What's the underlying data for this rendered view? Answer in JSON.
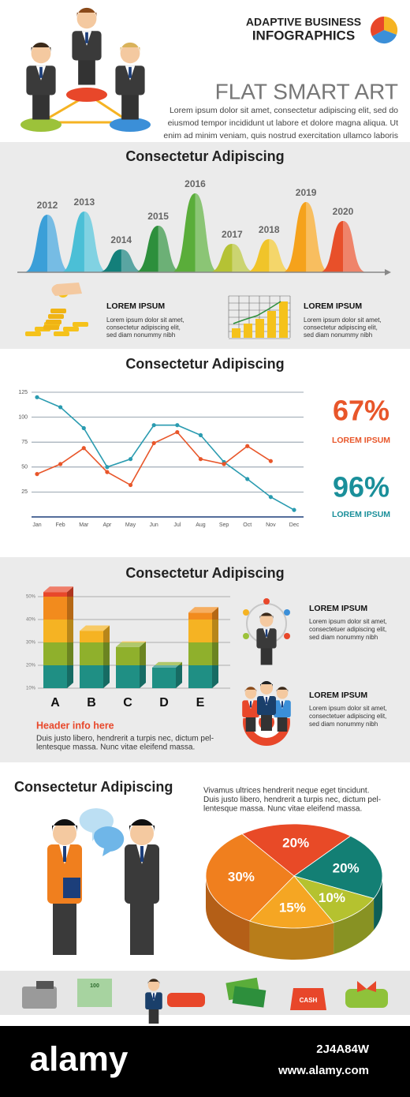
{
  "header": {
    "title_line1": "ADAPTIVE BUSINESS",
    "title_line2": "INFOGRAPHICS",
    "subtitle": "FLAT SMART ART",
    "text": [
      "Lorem ipsum dolor sit amet, consectetur adipiscing elit, sed do",
      "eiusmod tempor incididunt ut labore et dolore magna aliqua. Ut",
      "enim ad minim veniam, quis nostrud exercitation ullamco laboris"
    ]
  },
  "chart_data": [
    {
      "type": "bell",
      "title": "Consectetur Adipiscing",
      "categories": [
        "2012",
        "2013",
        "2014",
        "2015",
        "2016",
        "2017",
        "2018",
        "2019",
        "2020"
      ],
      "values": [
        73,
        77,
        29,
        59,
        100,
        36,
        42,
        89,
        65
      ],
      "colors": [
        "#3b9fd8",
        "#4bbfd6",
        "#137f7a",
        "#2d8f3c",
        "#5aad3a",
        "#b5c234",
        "#f0c42a",
        "#f5a21b",
        "#e8502a"
      ],
      "ylim": [
        0,
        100
      ]
    },
    {
      "type": "line",
      "title": "Consectetur Adipiscing",
      "categories": [
        "Jan",
        "Feb",
        "Mar",
        "Apr",
        "May",
        "Jun",
        "Jul",
        "Aug",
        "Sep",
        "Oct",
        "Nov",
        "Dec"
      ],
      "series": [
        {
          "color": "#2a9bb0",
          "values": [
            120,
            110,
            89,
            50,
            58,
            92,
            92,
            82,
            55,
            38,
            20,
            7
          ]
        },
        {
          "color": "#e8562a",
          "values": [
            43,
            53,
            69,
            45,
            32,
            74,
            85,
            58,
            53,
            71,
            56,
            null
          ]
        }
      ],
      "ylim": [
        0,
        125
      ],
      "yticks": [
        25,
        50,
        75,
        100,
        125
      ],
      "grid": true
    },
    {
      "type": "bar3d",
      "title": "Consectetur Adipiscing",
      "categories": [
        "A",
        "B",
        "C",
        "D",
        "E"
      ],
      "values": [
        52,
        35,
        28,
        19,
        43
      ],
      "colors": [
        "#1f8f84",
        "#8fb02c",
        "#f5b323",
        "#f28b1d",
        "#e8472a"
      ],
      "ylim": [
        10,
        50
      ],
      "yticks": [
        {
          "value": 10,
          "label": "10%"
        },
        {
          "value": 20,
          "label": "20%"
        },
        {
          "value": 30,
          "label": "30%"
        },
        {
          "value": 40,
          "label": "40%"
        },
        {
          "value": 50,
          "label": "50%"
        }
      ],
      "grid": true
    },
    {
      "type": "pie3d",
      "title": "Consectetur Adipiscing",
      "values": [
        20,
        20,
        10,
        15,
        30
      ],
      "value_labels": [
        "20%",
        "20%",
        "10%",
        "15%",
        "30%"
      ],
      "colors": [
        "#e84a27",
        "#137f74",
        "#b5c22f",
        "#f5a623",
        "#f07f1e"
      ]
    }
  ],
  "section1": {
    "blocks": [
      {
        "heading": "LOREM IPSUM",
        "lines": [
          "Lorem ipsum dolor sit amet,",
          "consectetur adipiscing elit,",
          "sed diam nonummy nibh"
        ]
      },
      {
        "heading": "LOREM IPSUM",
        "lines": [
          "Lorem ipsum dolor sit amet,",
          "consectetur adipiscing elit,",
          "sed diam nonummy nibh"
        ]
      }
    ]
  },
  "section2": {
    "stats": [
      {
        "value": "67%",
        "label": "LOREM IPSUM"
      },
      {
        "value": "96%",
        "label": "LOREM IPSUM"
      }
    ]
  },
  "section3": {
    "blocks": [
      {
        "heading": "LOREM IPSUM",
        "lines": [
          "Lorem ipsum dolor sit amet,",
          "consectetuer adipiscing elit,",
          "sed diam nonummy nibh"
        ]
      },
      {
        "heading": "LOREM IPSUM",
        "lines": [
          "Lorem ipsum dolor sit amet,",
          "consectetuer adipiscing elit,",
          "sed diam nonummy nibh"
        ]
      }
    ],
    "header": "Header info here",
    "lines": [
      "Duis justo libero, hendrerit a turpis nec, dictum pel-",
      "lentesque massa. Nunc vitae eleifend massa."
    ]
  },
  "section4": {
    "lines": [
      "Vivamus ultrices hendrerit neque eget tincidunt.",
      "Duis justo libero, hendrerit a turpis nec, dictum pel-",
      "lentesque massa. Nunc vitae eleifend massa."
    ]
  },
  "icon_strip": {
    "cash_label": "CASH",
    "bill_label": "100"
  },
  "watermark": {
    "logo": "alamy",
    "image_id": "2J4A84W",
    "url": "www.alamy.com"
  }
}
